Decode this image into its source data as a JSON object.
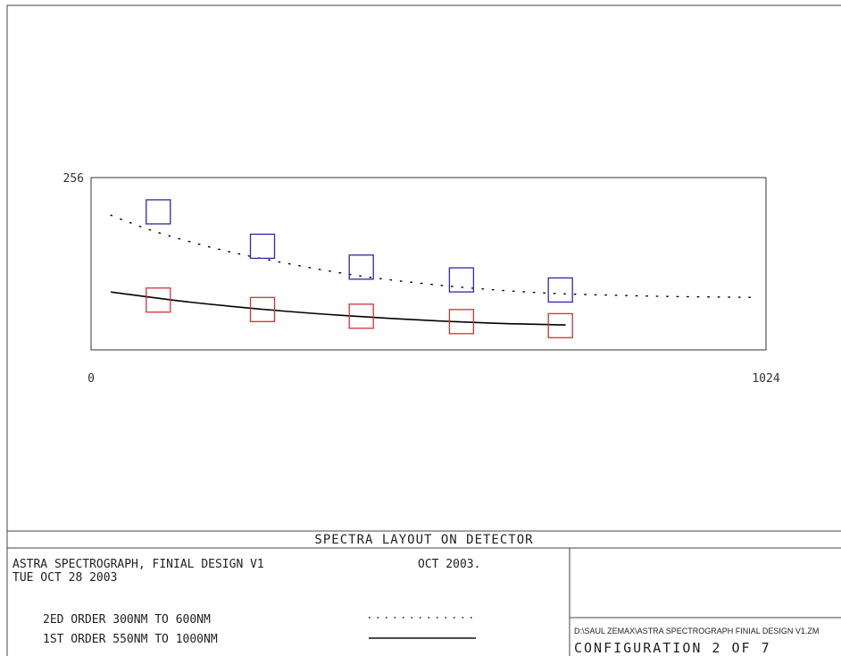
{
  "chart_data": {
    "type": "line",
    "xlim": [
      0,
      1024
    ],
    "ylim": [
      0,
      256
    ],
    "x_ticks": [
      "0",
      "1024"
    ],
    "y_ticks": [
      "256"
    ],
    "grid": false,
    "series": [
      {
        "name": "2ED ORDER 300NM TO 600NM",
        "style": "dotted",
        "color": "#000000",
        "marker_color": "#2b2ba8",
        "curve": [
          [
            30,
            200
          ],
          [
            100,
            175
          ],
          [
            200,
            148
          ],
          [
            300,
            128
          ],
          [
            400,
            111
          ],
          [
            500,
            99
          ],
          [
            600,
            90
          ],
          [
            700,
            84
          ],
          [
            800,
            81
          ],
          [
            900,
            79
          ],
          [
            1010,
            78
          ]
        ],
        "markers": [
          [
            102,
            205
          ],
          [
            260,
            154
          ],
          [
            410,
            123
          ],
          [
            562,
            104
          ],
          [
            712,
            89
          ]
        ]
      },
      {
        "name": "1ST ORDER 550NM TO 1000NM",
        "style": "solid",
        "color": "#000000",
        "marker_color": "#d83030",
        "curve": [
          [
            30,
            86
          ],
          [
            150,
            71
          ],
          [
            300,
            57
          ],
          [
            450,
            47
          ],
          [
            600,
            40
          ],
          [
            720,
            37
          ]
        ],
        "markers": [
          [
            102,
            74
          ],
          [
            260,
            60
          ],
          [
            410,
            50
          ],
          [
            562,
            42
          ],
          [
            712,
            36
          ]
        ]
      }
    ]
  },
  "footer": {
    "title": "SPECTRA LAYOUT ON DETECTOR",
    "line1": "ASTRA SPECTROGRAPH, FINIAL DESIGN V1",
    "date_short": "OCT  2003.",
    "line2": "TUE OCT 28 2003",
    "legend": [
      {
        "label": "2ED ORDER 300NM TO  600NM",
        "style": "dotted"
      },
      {
        "label": "1ST ORDER 550NM TO 1000NM",
        "style": "solid"
      }
    ],
    "path": "D:\\SAUL ZEMAX\\ASTRA SPECTROGRAPH FINIAL DESIGN V1.ZM",
    "config": "CONFIGURATION 2 OF 7"
  }
}
